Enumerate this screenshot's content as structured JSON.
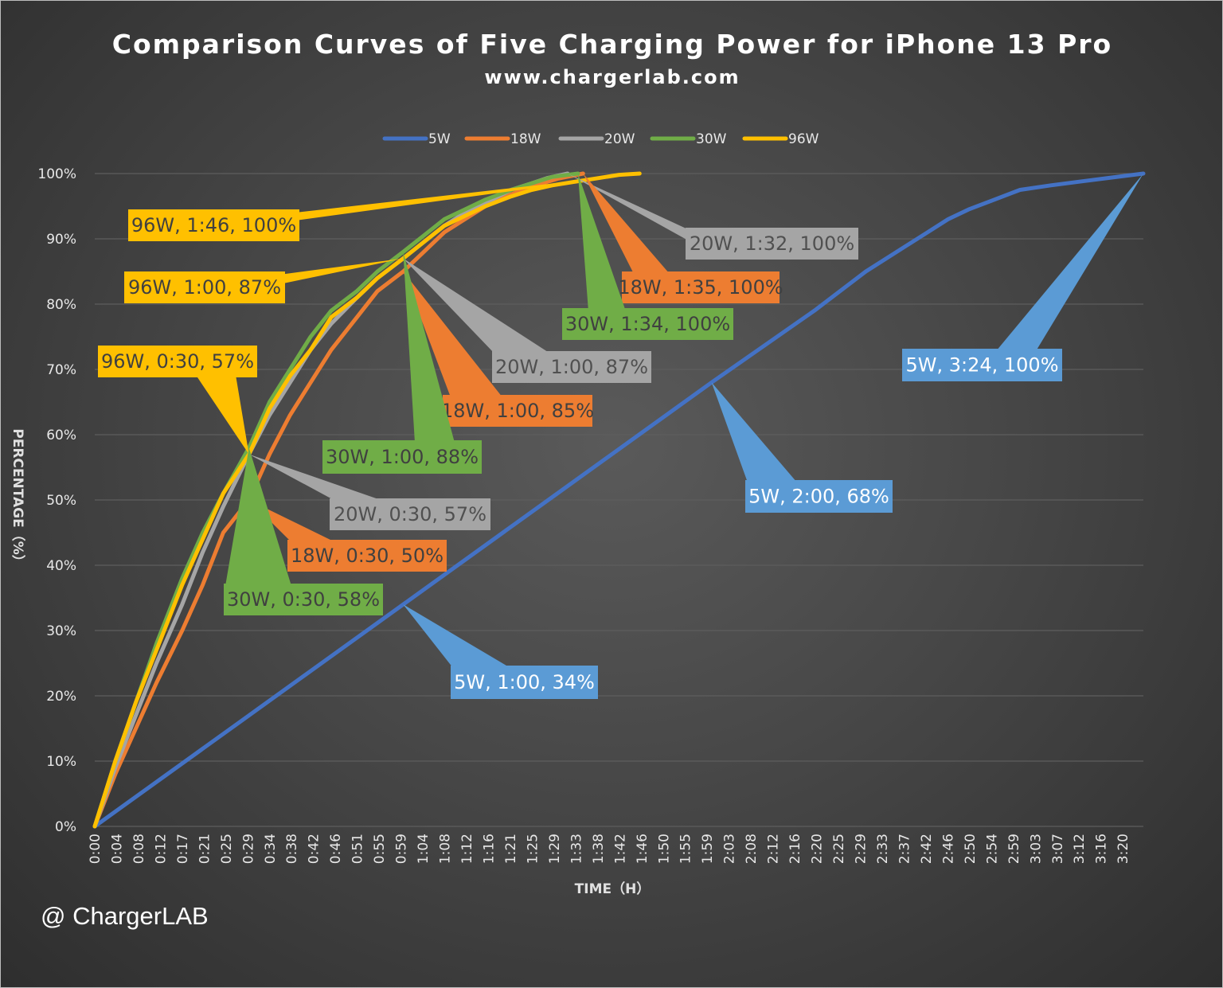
{
  "chart_data": {
    "type": "line",
    "title": "Comparison Curves of Five Charging Power for iPhone 13 Pro",
    "subtitle": "www.chargerlab.com",
    "xlabel": "TIME（H）",
    "ylabel": "PERCENTAGE（%）",
    "x_unit": "minutes",
    "xlim": [
      0,
      204
    ],
    "ylim": [
      0,
      100
    ],
    "grid": true,
    "legend_position": "top-center",
    "x_tick_labels": [
      "0:00",
      "0:04",
      "0:08",
      "0:12",
      "0:17",
      "0:21",
      "0:25",
      "0:29",
      "0:34",
      "0:38",
      "0:42",
      "0:46",
      "0:51",
      "0:55",
      "0:59",
      "1:04",
      "1:08",
      "1:12",
      "1:16",
      "1:21",
      "1:25",
      "1:29",
      "1:33",
      "1:38",
      "1:42",
      "1:46",
      "1:50",
      "1:55",
      "1:59",
      "2:03",
      "2:08",
      "2:12",
      "2:16",
      "2:20",
      "2:25",
      "2:29",
      "2:33",
      "2:37",
      "2:42",
      "2:46",
      "2:50",
      "2:54",
      "2:59",
      "3:03",
      "3:07",
      "3:12",
      "3:16",
      "3:20"
    ],
    "y_tick_labels": [
      "0%",
      "10%",
      "20%",
      "30%",
      "40%",
      "50%",
      "60%",
      "70%",
      "80%",
      "90%",
      "100%"
    ],
    "series": [
      {
        "name": "5W",
        "color": "#4472C4",
        "x": [
          0,
          30,
          60,
          90,
          120,
          140,
          150,
          158,
          162,
          166,
          170,
          175,
          180,
          186,
          192,
          198,
          204
        ],
        "y": [
          0,
          17,
          34,
          51,
          68,
          79,
          85,
          89,
          91,
          93,
          94.5,
          96,
          97.5,
          98.2,
          98.8,
          99.4,
          100
        ]
      },
      {
        "name": "18W",
        "color": "#ED7D31",
        "x": [
          0,
          4,
          8,
          12,
          17,
          21,
          25,
          30,
          34,
          38,
          42,
          46,
          51,
          55,
          60,
          64,
          68,
          72,
          76,
          81,
          85,
          90,
          95
        ],
        "y": [
          0,
          8,
          15,
          22,
          30,
          37,
          45,
          50,
          57,
          63,
          68,
          73,
          78,
          82,
          85,
          88,
          91,
          93,
          95,
          96.8,
          98,
          99.2,
          100
        ]
      },
      {
        "name": "20W",
        "color": "#A5A5A5",
        "x": [
          0,
          4,
          8,
          12,
          17,
          21,
          25,
          30,
          34,
          38,
          42,
          46,
          51,
          55,
          60,
          64,
          68,
          72,
          76,
          81,
          85,
          88,
          92
        ],
        "y": [
          0,
          9,
          17,
          25,
          34,
          42,
          49,
          57,
          63,
          68,
          73,
          77,
          81,
          84,
          87,
          89.5,
          92,
          94,
          95.5,
          97.5,
          98.5,
          99.3,
          100
        ]
      },
      {
        "name": "30W",
        "color": "#70AD47",
        "x": [
          0,
          4,
          8,
          12,
          17,
          21,
          25,
          30,
          34,
          38,
          42,
          46,
          51,
          55,
          60,
          64,
          68,
          72,
          76,
          81,
          85,
          89,
          94
        ],
        "y": [
          0,
          10,
          19,
          28,
          38,
          45,
          51,
          58,
          65,
          70,
          75,
          79,
          82,
          85,
          88,
          90.5,
          93,
          94.5,
          96,
          97.5,
          98.5,
          99.5,
          100
        ]
      },
      {
        "name": "96W",
        "color": "#FFC000",
        "x": [
          0,
          4,
          8,
          12,
          17,
          21,
          25,
          30,
          34,
          38,
          42,
          46,
          51,
          55,
          60,
          64,
          68,
          72,
          76,
          81,
          85,
          89,
          93,
          98,
          102,
          106
        ],
        "y": [
          0,
          10,
          19,
          27,
          37,
          44,
          51,
          57,
          64,
          69,
          73,
          78,
          81,
          84,
          87,
          89.5,
          92,
          93.5,
          95,
          96.5,
          97.5,
          98.2,
          98.7,
          99.3,
          99.8,
          100
        ]
      }
    ],
    "annotations": [
      {
        "series": "96W",
        "text": "96W, 1:46, 100%",
        "x": 106,
        "y": 100,
        "color": "#FFC000",
        "text_color": "#404040"
      },
      {
        "series": "96W",
        "text": "96W, 1:00, 87%",
        "x": 60,
        "y": 87,
        "color": "#FFC000",
        "text_color": "#404040"
      },
      {
        "series": "96W",
        "text": "96W, 0:30, 57%",
        "x": 30,
        "y": 57,
        "color": "#FFC000",
        "text_color": "#404040"
      },
      {
        "series": "20W",
        "text": "20W, 1:32, 100%",
        "x": 92,
        "y": 100,
        "color": "#A5A5A5",
        "text_color": "#505050"
      },
      {
        "series": "18W",
        "text": "18W, 1:35, 100%",
        "x": 95,
        "y": 100,
        "color": "#ED7D31",
        "text_color": "#404040"
      },
      {
        "series": "30W",
        "text": "30W, 1:34, 100%",
        "x": 94,
        "y": 100,
        "color": "#70AD47",
        "text_color": "#404040"
      },
      {
        "series": "20W",
        "text": "20W, 1:00, 87%",
        "x": 60,
        "y": 87,
        "color": "#A5A5A5",
        "text_color": "#505050"
      },
      {
        "series": "18W",
        "text": "18W, 1:00, 85%",
        "x": 60,
        "y": 85,
        "color": "#ED7D31",
        "text_color": "#404040"
      },
      {
        "series": "30W",
        "text": "30W, 1:00, 88%",
        "x": 60,
        "y": 88,
        "color": "#70AD47",
        "text_color": "#404040"
      },
      {
        "series": "20W",
        "text": "20W, 0:30, 57%",
        "x": 30,
        "y": 57,
        "color": "#A5A5A5",
        "text_color": "#505050"
      },
      {
        "series": "18W",
        "text": "18W, 0:30, 50%",
        "x": 30,
        "y": 50,
        "color": "#ED7D31",
        "text_color": "#404040"
      },
      {
        "series": "30W",
        "text": "30W, 0:30, 58%",
        "x": 30,
        "y": 58,
        "color": "#70AD47",
        "text_color": "#404040"
      },
      {
        "series": "5W",
        "text": "5W, 1:00, 34%",
        "x": 60,
        "y": 34,
        "color": "#5B9BD5",
        "text_color": "#ffffff"
      },
      {
        "series": "5W",
        "text": "5W, 2:00, 68%",
        "x": 120,
        "y": 68,
        "color": "#5B9BD5",
        "text_color": "#ffffff"
      },
      {
        "series": "5W",
        "text": "5W, 3:24, 100%",
        "x": 204,
        "y": 100,
        "color": "#5B9BD5",
        "text_color": "#ffffff"
      }
    ]
  },
  "watermark": "@ ChargerLAB"
}
